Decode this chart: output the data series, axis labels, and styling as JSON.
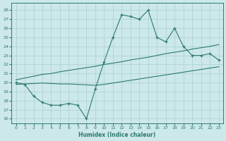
{
  "xlabel": "Humidex (Indice chaleur)",
  "x_ticks": [
    0,
    1,
    2,
    3,
    4,
    5,
    6,
    7,
    8,
    9,
    10,
    11,
    12,
    13,
    14,
    15,
    16,
    17,
    18,
    19,
    20,
    21,
    22,
    23
  ],
  "ylim": [
    15.5,
    28.8
  ],
  "xlim": [
    -0.5,
    23.5
  ],
  "yticks": [
    16,
    17,
    18,
    19,
    20,
    21,
    22,
    23,
    24,
    25,
    26,
    27,
    28
  ],
  "line_color": "#2d7a6a",
  "bg_color": "#cce8e8",
  "grid_color": "#aad0d0",
  "main_y": [
    20.0,
    19.8,
    18.5,
    17.8,
    17.5,
    17.5,
    17.7,
    17.5,
    16.0,
    19.3,
    22.3,
    25.0,
    27.5,
    27.3,
    27.0,
    28.0,
    25.0,
    24.5,
    26.0,
    24.0,
    23.0,
    23.0,
    23.2,
    22.5
  ],
  "upper_y": [
    20.3,
    20.5,
    20.7,
    20.9,
    21.0,
    21.2,
    21.35,
    21.5,
    21.65,
    21.8,
    22.0,
    22.15,
    22.3,
    22.5,
    22.65,
    22.8,
    23.0,
    23.2,
    23.35,
    23.5,
    23.7,
    23.85,
    24.0,
    24.2
  ],
  "lower_y": [
    19.8,
    19.85,
    19.9,
    19.95,
    19.9,
    19.85,
    19.85,
    19.8,
    19.75,
    19.7,
    19.8,
    19.95,
    20.1,
    20.25,
    20.4,
    20.55,
    20.7,
    20.85,
    21.0,
    21.15,
    21.3,
    21.45,
    21.6,
    21.75
  ]
}
